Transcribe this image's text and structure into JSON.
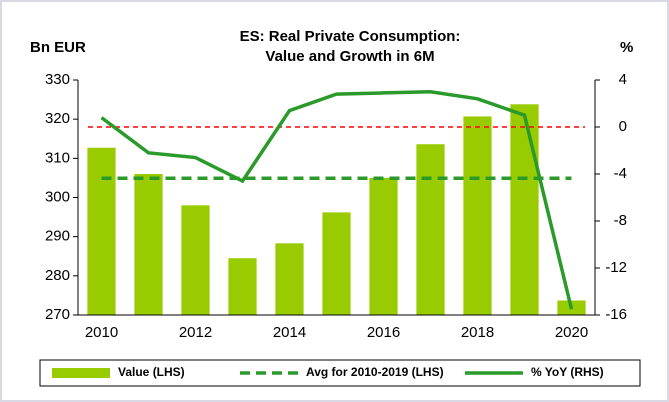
{
  "chart_data": {
    "type": "bar_line",
    "title": [
      "ES: Real Private Consumption:",
      "Value and Growth in 6M"
    ],
    "y_label": "Bn EUR",
    "y2_label": "%",
    "categories": [
      "2010",
      null,
      "2012",
      null,
      "2014",
      null,
      "2016",
      null,
      "2018",
      null,
      "2020"
    ],
    "series": [
      {
        "name": "Value (LHS)",
        "type": "bar",
        "color": "#99cc00",
        "values": [
          312.7,
          306,
          298,
          284.5,
          288.3,
          296.2,
          305,
          313.6,
          320.7,
          323.8,
          273.7
        ]
      },
      {
        "name": "Avg for 2010-2019 (LHS)",
        "type": "dashed-line",
        "color": "#2a9a2a",
        "values": [
          304.9,
          304.9,
          304.9,
          304.9,
          304.9,
          304.9,
          304.9,
          304.9,
          304.9,
          304.9,
          304.9
        ]
      },
      {
        "name": "% YoY (RHS)",
        "type": "line",
        "axis": "y2",
        "color": "#2a9a2a",
        "values": [
          0.8,
          -2.2,
          -2.6,
          -4.6,
          1.4,
          2.8,
          2.9,
          3.0,
          2.4,
          1.0,
          -15.5
        ]
      }
    ],
    "reference_lines": [
      {
        "value": 0,
        "axis": "y2",
        "color": "#ff0000"
      }
    ],
    "ylim": [
      270,
      330
    ],
    "yticks": [
      270,
      280,
      290,
      300,
      310,
      320,
      330
    ],
    "y2lim": [
      -16,
      4
    ],
    "y2ticks": [
      -16,
      -12,
      -8,
      -4,
      0,
      4
    ]
  }
}
